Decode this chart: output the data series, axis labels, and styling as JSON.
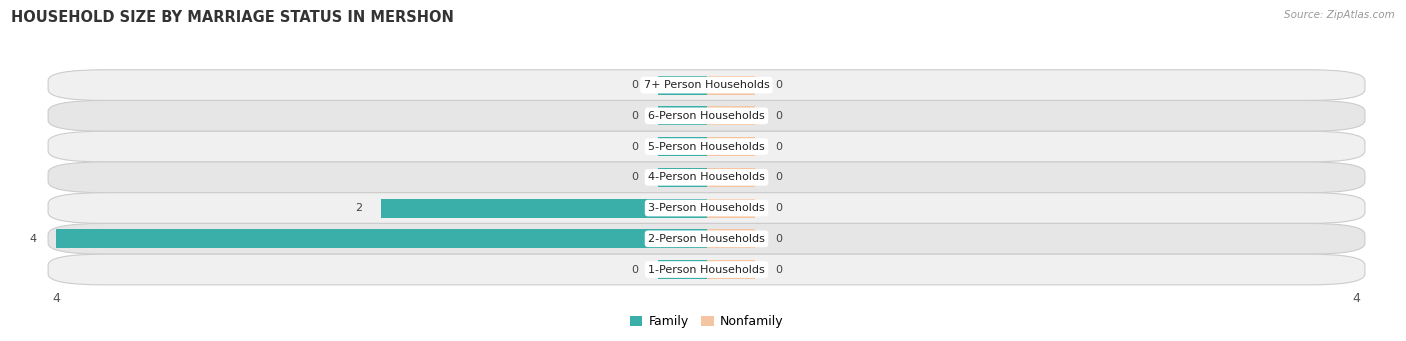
{
  "title": "HOUSEHOLD SIZE BY MARRIAGE STATUS IN MERSHON",
  "source": "Source: ZipAtlas.com",
  "categories": [
    "7+ Person Households",
    "6-Person Households",
    "5-Person Households",
    "4-Person Households",
    "3-Person Households",
    "2-Person Households",
    "1-Person Households"
  ],
  "family_values": [
    0,
    0,
    0,
    0,
    2,
    4,
    0
  ],
  "nonfamily_values": [
    0,
    0,
    0,
    0,
    0,
    0,
    0
  ],
  "family_color": "#3AAFA9",
  "nonfamily_color": "#F5C4A0",
  "xlim": [
    -4,
    4
  ],
  "bar_height": 0.62,
  "row_light": "#f0f0f0",
  "row_dark": "#e6e6e6",
  "title_fontsize": 10.5,
  "tick_fontsize": 9,
  "cat_fontsize": 8,
  "value_fontsize": 8,
  "legend_fontsize": 9,
  "min_stub": 0.3
}
